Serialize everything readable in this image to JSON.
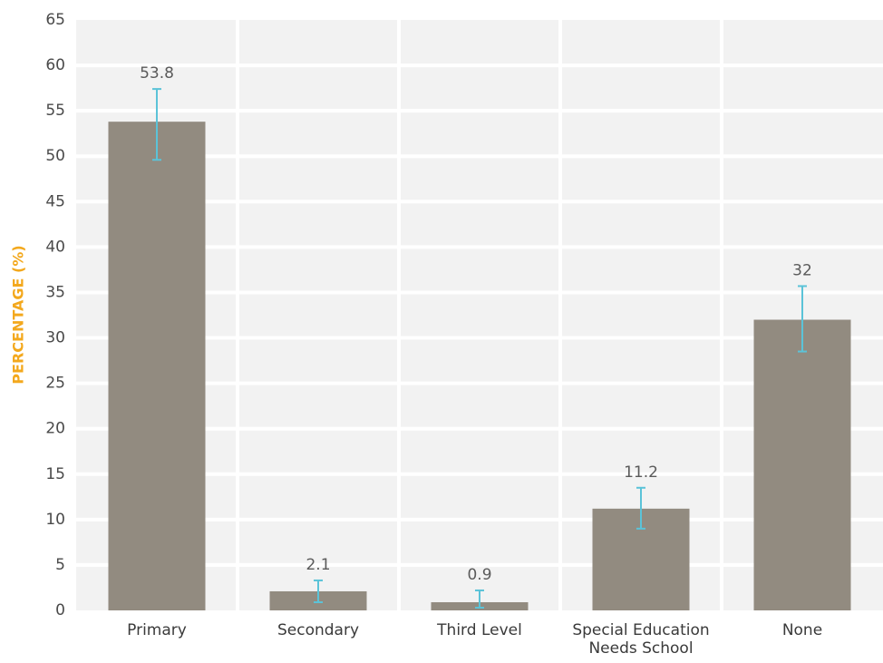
{
  "chart_data": {
    "type": "bar",
    "title": "",
    "xlabel": "",
    "ylabel": "PERCENTAGE (%)",
    "ylim": [
      0,
      65
    ],
    "yticks": [
      0,
      5,
      10,
      15,
      20,
      25,
      30,
      35,
      40,
      45,
      50,
      55,
      60,
      65
    ],
    "grid": true,
    "legend": "none",
    "categories": [
      "Primary",
      "Secondary",
      "Third Level",
      "Special Education\nNeeds School",
      "None"
    ],
    "values": [
      53.8,
      2.1,
      0.9,
      11.2,
      32
    ],
    "data_labels": [
      "53.8",
      "2.1",
      "0.9",
      "11.2",
      "32"
    ],
    "error_low": [
      49.6,
      0.9,
      0.3,
      9.0,
      28.5
    ],
    "error_high": [
      57.4,
      3.3,
      2.2,
      13.5,
      35.7
    ],
    "colors": {
      "bar": "#928b80",
      "error_bar": "#5bc3d8",
      "plot_bg": "#f2f2f2",
      "grid": "#ffffff",
      "ylabel": "#f3a81d"
    }
  }
}
